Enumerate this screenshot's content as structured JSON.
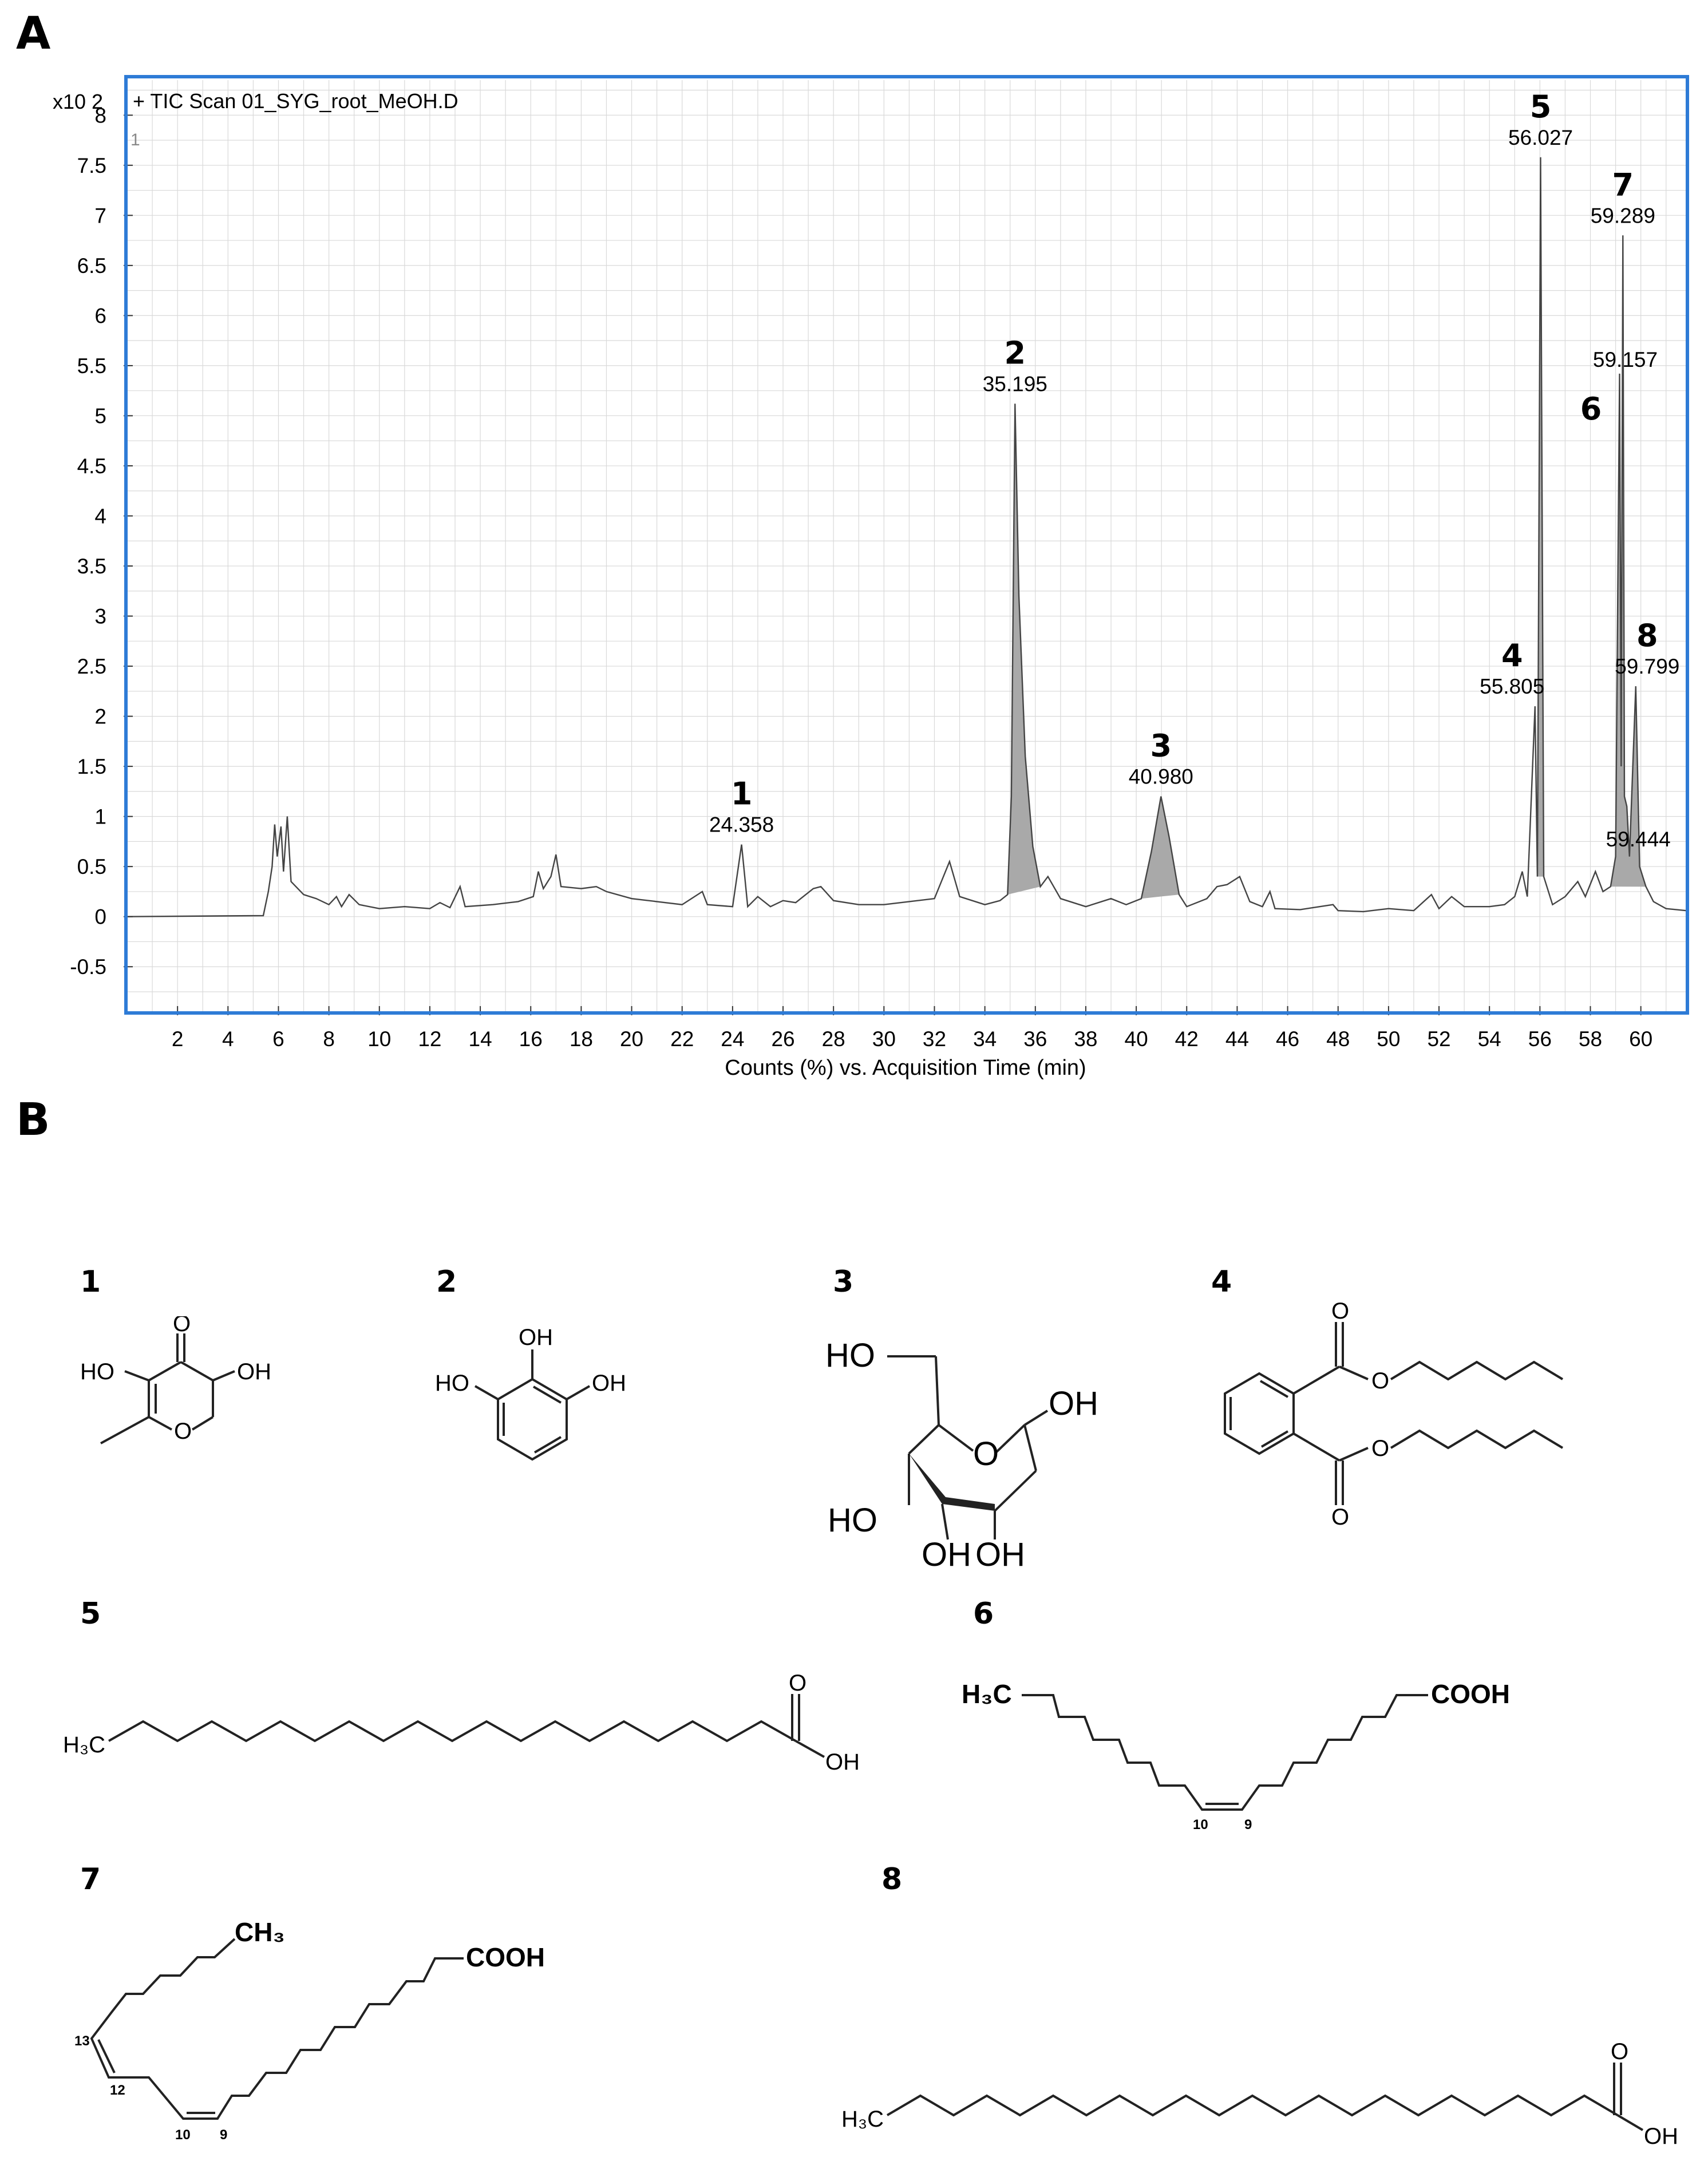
{
  "panels": {
    "a": "A",
    "b": "B"
  },
  "chart_data": {
    "type": "line",
    "title": "+ TIC Scan 01_SYG_root_MeOH.D",
    "xlabel": "Counts (%) vs. Acquisition Time (min)",
    "y_multiplier": "x10 2",
    "corner_tag": "1",
    "xlim": [
      0,
      61.8
    ],
    "ylim": [
      -0.95,
      8.35
    ],
    "x_ticks": [
      2,
      4,
      6,
      8,
      10,
      12,
      14,
      16,
      18,
      20,
      22,
      24,
      26,
      28,
      30,
      32,
      34,
      36,
      38,
      40,
      42,
      44,
      46,
      48,
      50,
      52,
      54,
      56,
      58,
      60
    ],
    "x_tick_labels": [
      "2",
      "4",
      "6",
      "8",
      "10",
      "12",
      "14",
      "16",
      "18",
      "20",
      "22",
      "24",
      "26",
      "28",
      "30",
      "32",
      "34",
      "36",
      "38",
      "40",
      "42",
      "44",
      "46",
      "48",
      "50",
      "52",
      "54",
      "56",
      "58",
      "60"
    ],
    "y_ticks": [
      -0.5,
      0,
      0.5,
      1,
      1.5,
      2,
      2.5,
      3,
      3.5,
      4,
      4.5,
      5,
      5.5,
      6,
      6.5,
      7,
      7.5,
      8
    ],
    "y_tick_labels": [
      "-0.5",
      "0",
      "0.5",
      "1",
      "1.5",
      "2",
      "2.5",
      "3",
      "3.5",
      "4",
      "4.5",
      "5",
      "5.5",
      "6",
      "6.5",
      "7",
      "7.5",
      "8"
    ],
    "grid": true,
    "colors": {
      "frame": "#2e7bd6",
      "trace": "#444444",
      "fill": "#a9a9a9",
      "grid": "#d9d9d9"
    },
    "baseline": [
      [
        0,
        0.0
      ],
      [
        5.4,
        0.01
      ],
      [
        5.6,
        0.25
      ],
      [
        5.75,
        0.5
      ],
      [
        5.85,
        0.92
      ],
      [
        5.95,
        0.6
      ],
      [
        6.1,
        0.9
      ],
      [
        6.2,
        0.45
      ],
      [
        6.35,
        1.0
      ],
      [
        6.5,
        0.35
      ],
      [
        7.0,
        0.22
      ],
      [
        7.5,
        0.18
      ],
      [
        8.0,
        0.12
      ],
      [
        8.3,
        0.2
      ],
      [
        8.5,
        0.1
      ],
      [
        8.8,
        0.22
      ],
      [
        9.2,
        0.12
      ],
      [
        10.0,
        0.08
      ],
      [
        11.0,
        0.1
      ],
      [
        12.0,
        0.08
      ],
      [
        12.4,
        0.14
      ],
      [
        12.8,
        0.09
      ],
      [
        13.2,
        0.3
      ],
      [
        13.4,
        0.1
      ],
      [
        14.5,
        0.12
      ],
      [
        15.5,
        0.15
      ],
      [
        16.1,
        0.2
      ],
      [
        16.3,
        0.45
      ],
      [
        16.5,
        0.28
      ],
      [
        16.8,
        0.4
      ],
      [
        17.0,
        0.62
      ],
      [
        17.2,
        0.3
      ],
      [
        18.0,
        0.28
      ],
      [
        18.6,
        0.3
      ],
      [
        19.0,
        0.25
      ],
      [
        20.0,
        0.18
      ],
      [
        21.0,
        0.15
      ],
      [
        22.0,
        0.12
      ],
      [
        22.8,
        0.25
      ],
      [
        23.0,
        0.12
      ],
      [
        24.0,
        0.1
      ],
      [
        24.358,
        0.72
      ],
      [
        24.6,
        0.1
      ],
      [
        25.0,
        0.2
      ],
      [
        25.5,
        0.1
      ],
      [
        26.0,
        0.16
      ],
      [
        26.5,
        0.14
      ],
      [
        27.2,
        0.28
      ],
      [
        27.5,
        0.3
      ],
      [
        28.0,
        0.16
      ],
      [
        29.0,
        0.12
      ],
      [
        30.0,
        0.12
      ],
      [
        31.0,
        0.15
      ],
      [
        32.0,
        0.18
      ],
      [
        32.6,
        0.55
      ],
      [
        33.0,
        0.2
      ],
      [
        34.0,
        0.12
      ],
      [
        34.6,
        0.16
      ],
      [
        34.9,
        0.22
      ],
      [
        35.05,
        1.2
      ],
      [
        35.195,
        5.12
      ],
      [
        35.35,
        3.2
      ],
      [
        35.6,
        1.6
      ],
      [
        35.9,
        0.7
      ],
      [
        36.2,
        0.3
      ],
      [
        36.5,
        0.4
      ],
      [
        37.0,
        0.18
      ],
      [
        38.0,
        0.1
      ],
      [
        39.0,
        0.18
      ],
      [
        39.6,
        0.12
      ],
      [
        40.2,
        0.18
      ],
      [
        40.6,
        0.65
      ],
      [
        40.98,
        1.2
      ],
      [
        41.3,
        0.8
      ],
      [
        41.7,
        0.22
      ],
      [
        42.0,
        0.1
      ],
      [
        42.8,
        0.18
      ],
      [
        43.2,
        0.3
      ],
      [
        43.6,
        0.32
      ],
      [
        44.1,
        0.4
      ],
      [
        44.5,
        0.15
      ],
      [
        45.0,
        0.1
      ],
      [
        45.3,
        0.25
      ],
      [
        45.5,
        0.08
      ],
      [
        46.5,
        0.07
      ],
      [
        47.8,
        0.12
      ],
      [
        48.0,
        0.06
      ],
      [
        49.0,
        0.05
      ],
      [
        50.0,
        0.08
      ],
      [
        51.0,
        0.06
      ],
      [
        51.7,
        0.22
      ],
      [
        52.0,
        0.08
      ],
      [
        52.5,
        0.2
      ],
      [
        53.0,
        0.1
      ],
      [
        54.0,
        0.1
      ],
      [
        54.6,
        0.12
      ],
      [
        55.0,
        0.2
      ],
      [
        55.3,
        0.45
      ],
      [
        55.5,
        0.2
      ],
      [
        55.805,
        2.1
      ],
      [
        55.9,
        0.4
      ],
      [
        56.027,
        7.58
      ],
      [
        56.15,
        0.4
      ],
      [
        56.5,
        0.12
      ],
      [
        57.0,
        0.2
      ],
      [
        57.5,
        0.35
      ],
      [
        57.8,
        0.2
      ],
      [
        58.2,
        0.45
      ],
      [
        58.5,
        0.25
      ],
      [
        58.8,
        0.3
      ],
      [
        59.0,
        0.6
      ],
      [
        59.157,
        5.42
      ],
      [
        59.22,
        1.5
      ],
      [
        59.289,
        6.8
      ],
      [
        59.35,
        1.2
      ],
      [
        59.444,
        1.1
      ],
      [
        59.55,
        0.6
      ],
      [
        59.799,
        2.3
      ],
      [
        59.95,
        0.5
      ],
      [
        60.2,
        0.3
      ],
      [
        60.5,
        0.15
      ],
      [
        61.0,
        0.08
      ],
      [
        61.8,
        0.06
      ]
    ],
    "filled_peaks": [
      2,
      3,
      5,
      6,
      7
    ],
    "peaks": [
      {
        "number": "1",
        "rt": 24.358,
        "height": 0.72,
        "rt_label": "24.358"
      },
      {
        "number": "2",
        "rt": 35.195,
        "height": 5.12,
        "rt_label": "35.195"
      },
      {
        "number": "3",
        "rt": 40.98,
        "height": 1.2,
        "rt_label": "40.980"
      },
      {
        "number": "4",
        "rt": 55.805,
        "height": 2.1,
        "rt_label": "55.805"
      },
      {
        "number": "5",
        "rt": 56.027,
        "height": 7.58,
        "rt_label": "56.027"
      },
      {
        "number": "6",
        "rt": 59.157,
        "height": 5.42,
        "rt_label": "59.157"
      },
      {
        "number": "7",
        "rt": 59.289,
        "height": 6.8,
        "rt_label": "59.289"
      },
      {
        "number": "8",
        "rt": 59.799,
        "height": 2.3,
        "rt_label": "59.799"
      },
      {
        "number": "",
        "rt": 59.444,
        "height": 1.1,
        "rt_label": "59.444"
      }
    ]
  },
  "structures": {
    "c1": {
      "number": "1",
      "ho": "HO",
      "oh": "OH",
      "o_ring": "O",
      "o_keto": "O"
    },
    "c2": {
      "number": "2",
      "oh_top": "OH",
      "ho_left": "HO",
      "oh_right": "OH"
    },
    "c3": {
      "number": "3",
      "ho_top": "HO",
      "o_ring": "O",
      "oh_right": "OH",
      "ho_bottom": "HO",
      "oh_b1": "OH",
      "oh_b2": "OH"
    },
    "c4": {
      "number": "4",
      "o_top": "O",
      "o_ester1": "O",
      "o_ester2": "O",
      "o_bottom": "O"
    },
    "c5": {
      "number": "5",
      "methyl": "H₃C",
      "o": "O",
      "oh": "OH"
    },
    "c6": {
      "number": "6",
      "methyl": "H₃C",
      "cooh": "COOH",
      "pos_a": "10",
      "pos_b": "9"
    },
    "c7": {
      "number": "7",
      "methyl": "CH₃",
      "cooh": "COOH",
      "pos_13": "13",
      "pos_12": "12",
      "pos_10": "10",
      "pos_9": "9"
    },
    "c8": {
      "number": "8",
      "methyl": "H₃C",
      "o": "O",
      "oh": "OH"
    }
  }
}
